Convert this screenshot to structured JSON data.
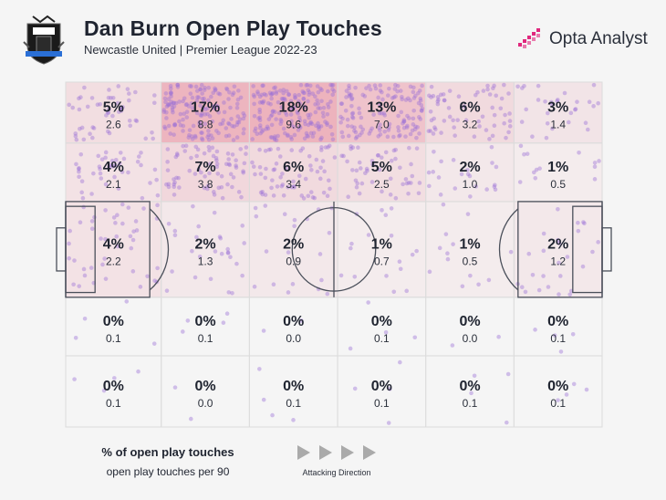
{
  "header": {
    "title": "Dan Burn Open Play Touches",
    "subtitle": "Newcastle United | Premier League 2022-23",
    "brand": "Opta Analyst"
  },
  "legend": {
    "primary": "% of open play touches",
    "secondary": "open play touches per 90",
    "direction": "Attacking Direction"
  },
  "colors": {
    "background": "#f5f5f5",
    "pitch_line": "#4a4f5a",
    "zone_border": "#dcdcdc",
    "heat": "#e8909f",
    "dot": "#9b6fd6",
    "arrow": "#aaaaaa",
    "brand": "#e0287d"
  },
  "chart_data": {
    "type": "heatmap",
    "rows": 5,
    "columns": 6,
    "row_heights_relative": [
      0.77,
      0.74,
      1.21,
      0.74,
      0.9
    ],
    "column_widths_relative": [
      1.3,
      1.2,
      1.2,
      1.2,
      1.2,
      1.2
    ],
    "cells": [
      [
        {
          "pct": "5%",
          "per90": "2.6",
          "value": 5
        },
        {
          "pct": "17%",
          "per90": "8.8",
          "value": 17
        },
        {
          "pct": "18%",
          "per90": "9.6",
          "value": 18
        },
        {
          "pct": "13%",
          "per90": "7.0",
          "value": 13
        },
        {
          "pct": "6%",
          "per90": "3.2",
          "value": 6
        },
        {
          "pct": "3%",
          "per90": "1.4",
          "value": 3
        }
      ],
      [
        {
          "pct": "4%",
          "per90": "2.1",
          "value": 4
        },
        {
          "pct": "7%",
          "per90": "3.8",
          "value": 7
        },
        {
          "pct": "6%",
          "per90": "3.4",
          "value": 6
        },
        {
          "pct": "5%",
          "per90": "2.5",
          "value": 5
        },
        {
          "pct": "2%",
          "per90": "1.0",
          "value": 2
        },
        {
          "pct": "1%",
          "per90": "0.5",
          "value": 1
        }
      ],
      [
        {
          "pct": "4%",
          "per90": "2.2",
          "value": 4
        },
        {
          "pct": "2%",
          "per90": "1.3",
          "value": 2
        },
        {
          "pct": "2%",
          "per90": "0.9",
          "value": 2
        },
        {
          "pct": "1%",
          "per90": "0.7",
          "value": 1
        },
        {
          "pct": "1%",
          "per90": "0.5",
          "value": 1
        },
        {
          "pct": "2%",
          "per90": "1.2",
          "value": 2
        }
      ],
      [
        {
          "pct": "0%",
          "per90": "0.1",
          "value": 0
        },
        {
          "pct": "0%",
          "per90": "0.1",
          "value": 0
        },
        {
          "pct": "0%",
          "per90": "0.0",
          "value": 0
        },
        {
          "pct": "0%",
          "per90": "0.1",
          "value": 0
        },
        {
          "pct": "0%",
          "per90": "0.0",
          "value": 0
        },
        {
          "pct": "0%",
          "per90": "0.1",
          "value": 0
        }
      ],
      [
        {
          "pct": "0%",
          "per90": "0.1",
          "value": 0
        },
        {
          "pct": "0%",
          "per90": "0.0",
          "value": 0
        },
        {
          "pct": "0%",
          "per90": "0.1",
          "value": 0
        },
        {
          "pct": "0%",
          "per90": "0.1",
          "value": 0
        },
        {
          "pct": "0%",
          "per90": "0.1",
          "value": 0
        },
        {
          "pct": "0%",
          "per90": "0.1",
          "value": 0
        }
      ]
    ],
    "title": "Dan Burn Open Play Touches",
    "subtitle": "Newcastle United | Premier League 2022-23",
    "attacking_direction": "left-to-right"
  }
}
